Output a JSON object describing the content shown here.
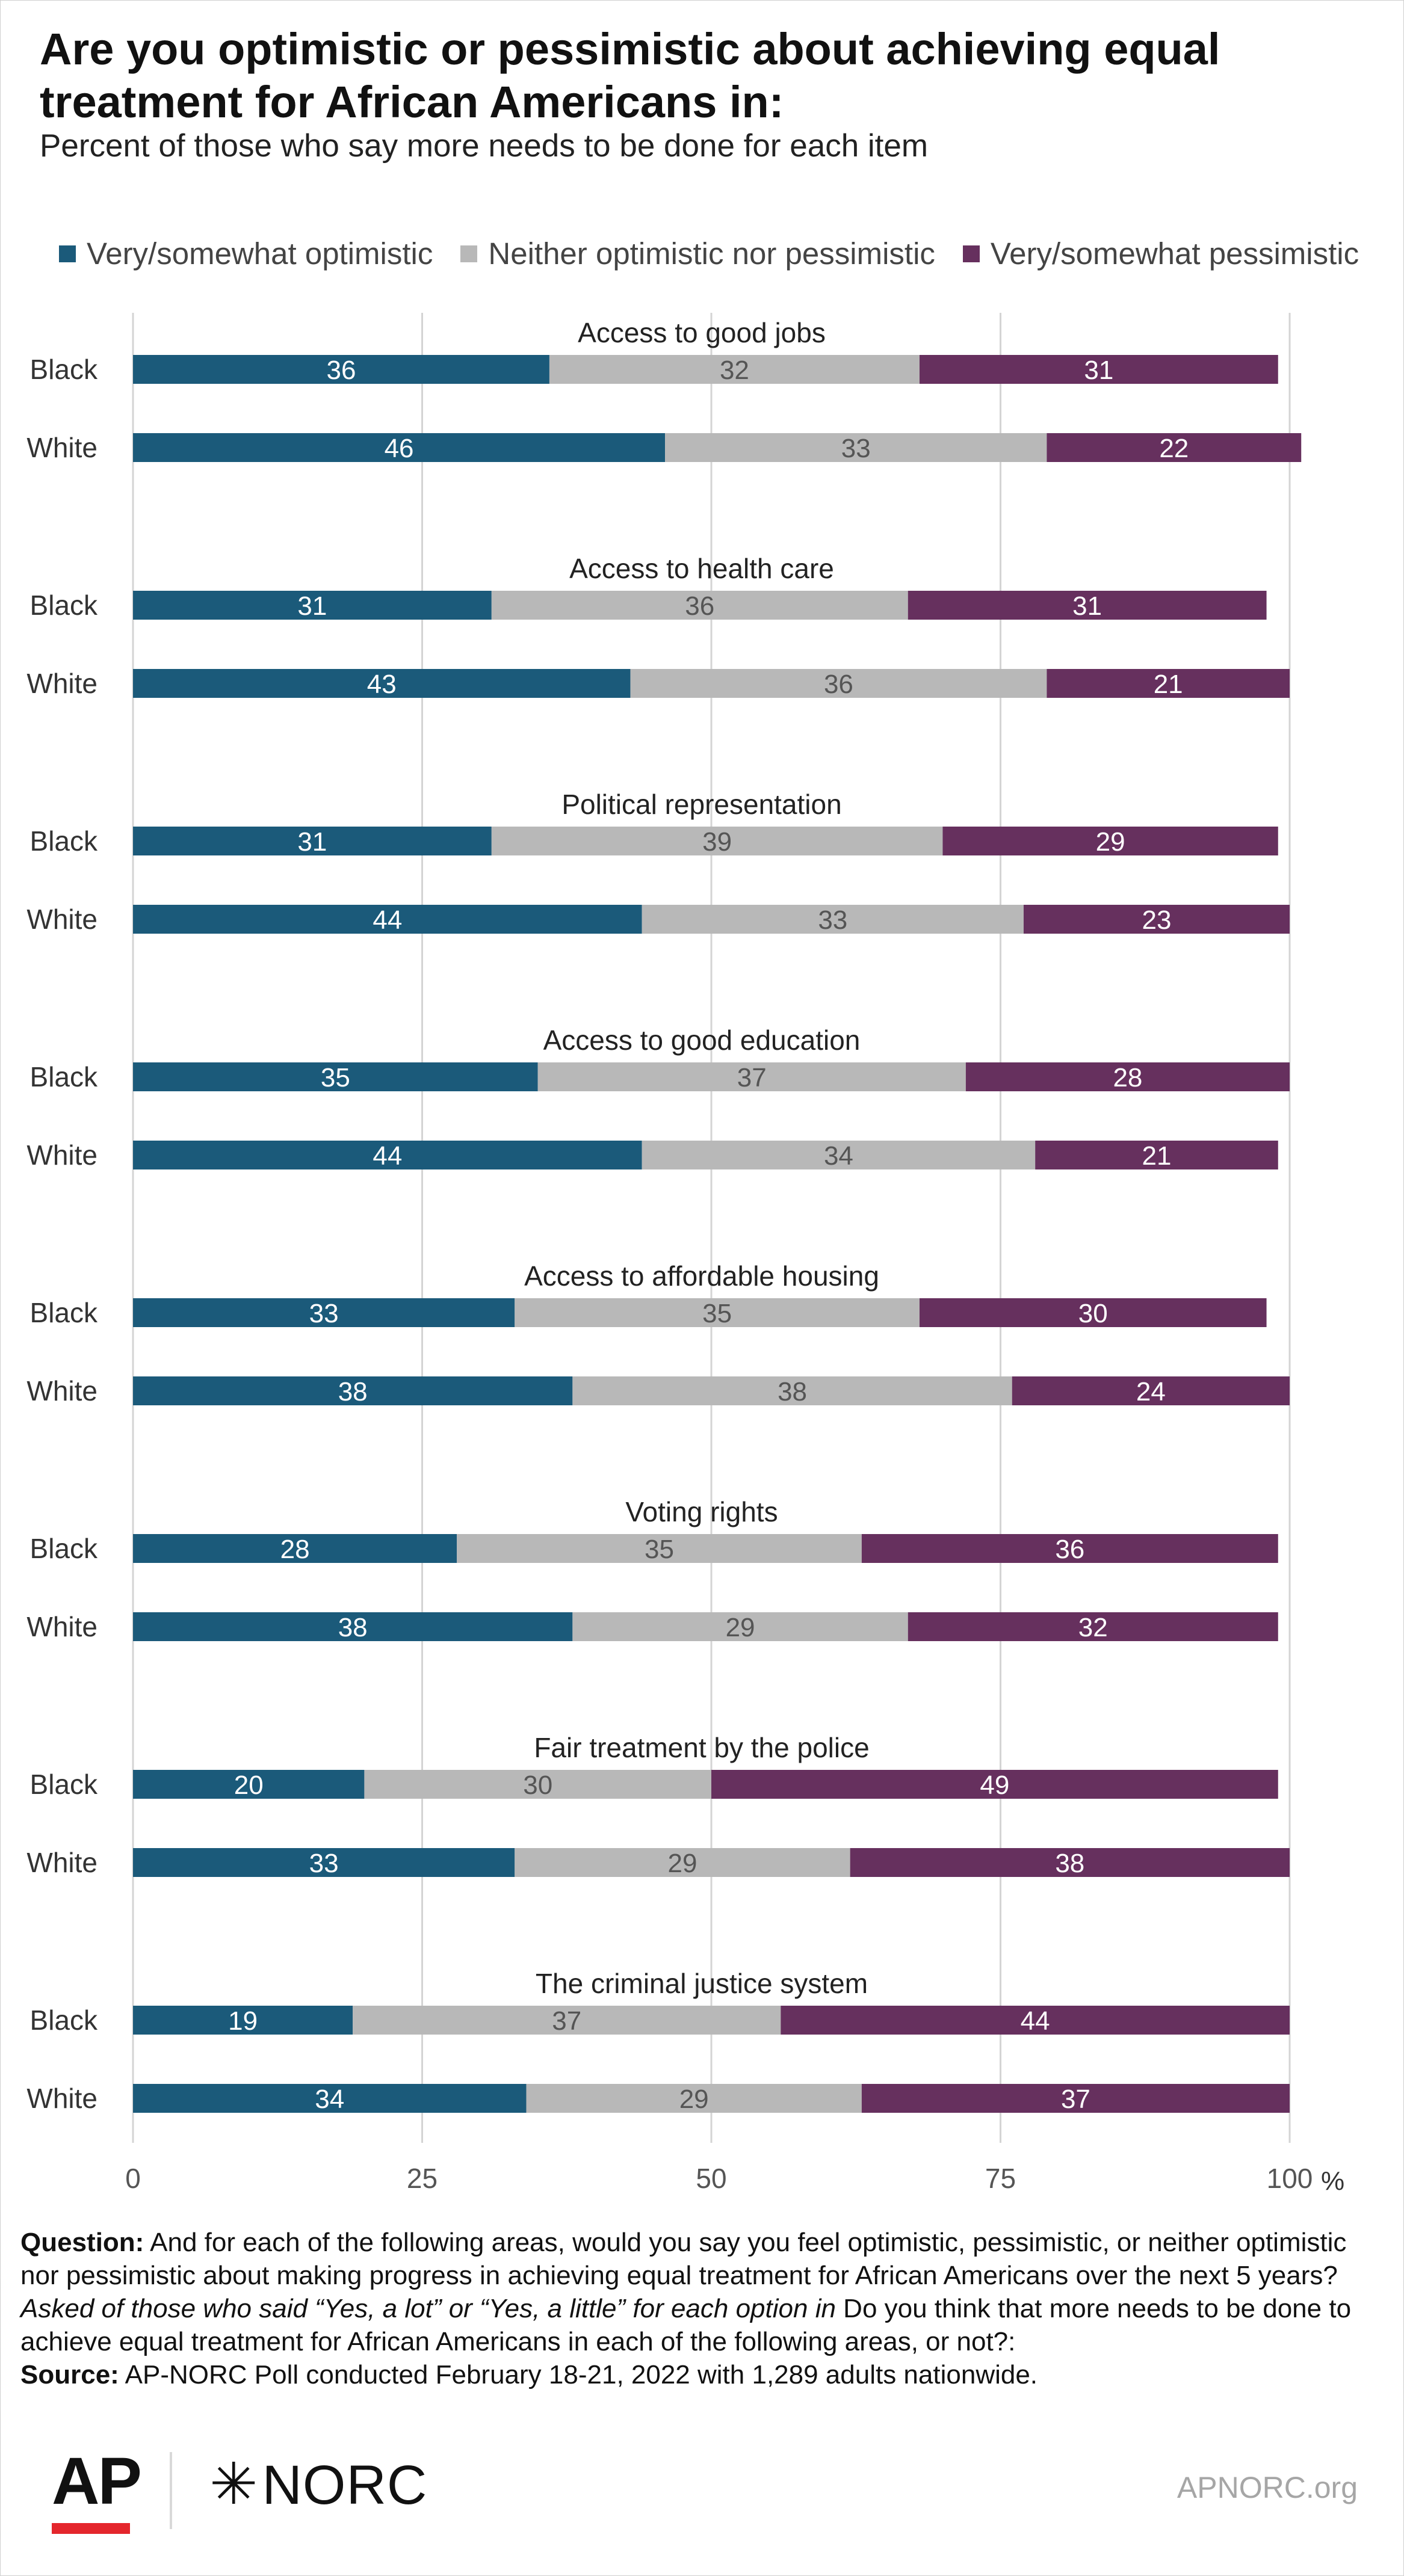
{
  "title": "Are you optimistic or pessimistic about achieving equal treatment for African Americans in:",
  "subtitle": "Percent of those who say more needs to be done for each item",
  "colors": {
    "optimistic": "#1b5a7a",
    "neither": "#b8b8b8",
    "pessimistic": "#66305e"
  },
  "legend": [
    {
      "label": "Very/somewhat optimistic",
      "color": "#1b5a7a"
    },
    {
      "label": "Neither optimistic nor pessimistic",
      "color": "#b8b8b8"
    },
    {
      "label": "Very/somewhat pessimistic",
      "color": "#66305e"
    }
  ],
  "chart_data": {
    "type": "bar",
    "orientation": "horizontal",
    "stacked": true,
    "xlim": [
      0,
      100
    ],
    "x_ticks": [
      "0",
      "25",
      "50",
      "75",
      "100"
    ],
    "x_unit": "%",
    "grid": true,
    "legend_position": "top",
    "series_names": [
      "Very/somewhat optimistic",
      "Neither optimistic nor pessimistic",
      "Very/somewhat pessimistic"
    ],
    "groups": [
      {
        "label": "Access to good jobs",
        "rows": [
          {
            "label": "Black",
            "values": [
              36,
              32,
              31
            ]
          },
          {
            "label": "White",
            "values": [
              46,
              33,
              22
            ]
          }
        ]
      },
      {
        "label": "Access to health care",
        "rows": [
          {
            "label": "Black",
            "values": [
              31,
              36,
              31
            ]
          },
          {
            "label": "White",
            "values": [
              43,
              36,
              21
            ]
          }
        ]
      },
      {
        "label": "Political representation",
        "rows": [
          {
            "label": "Black",
            "values": [
              31,
              39,
              29
            ]
          },
          {
            "label": "White",
            "values": [
              44,
              33,
              23
            ]
          }
        ]
      },
      {
        "label": "Access to good education",
        "rows": [
          {
            "label": "Black",
            "values": [
              35,
              37,
              28
            ]
          },
          {
            "label": "White",
            "values": [
              44,
              34,
              21
            ]
          }
        ]
      },
      {
        "label": "Access to affordable housing",
        "rows": [
          {
            "label": "Black",
            "values": [
              33,
              35,
              30
            ]
          },
          {
            "label": "White",
            "values": [
              38,
              38,
              24
            ]
          }
        ]
      },
      {
        "label": "Voting rights",
        "rows": [
          {
            "label": "Black",
            "values": [
              28,
              35,
              36
            ]
          },
          {
            "label": "White",
            "values": [
              38,
              29,
              32
            ]
          }
        ]
      },
      {
        "label": "Fair treatment by the police",
        "rows": [
          {
            "label": "Black",
            "values": [
              20,
              30,
              49
            ]
          },
          {
            "label": "White",
            "values": [
              33,
              29,
              38
            ]
          }
        ]
      },
      {
        "label": "The criminal justice system",
        "rows": [
          {
            "label": "Black",
            "values": [
              19,
              37,
              44
            ]
          },
          {
            "label": "White",
            "values": [
              34,
              29,
              37
            ]
          }
        ]
      }
    ]
  },
  "notes": {
    "question_label": "Question:",
    "question_text": " And for each of the following areas, would you say you feel optimistic, pessimistic, or neither optimistic nor pessimistic about making progress in achieving equal treatment for African Americans over the next 5 years? ",
    "asked_italic": "Asked of those who said “Yes, a lot” or “Yes, a little” for each option in",
    "asked_rest": " Do you think that more needs to be done to achieve equal treatment for African Americans in each of the following areas, or not?:",
    "source_label": "Source:",
    "source_text": " AP-NORC Poll conducted February 18-21, 2022 with 1,289 adults nationwide."
  },
  "footer": {
    "ap_logo": "AP",
    "norc_logo": "NORC",
    "site": "APNORC.org"
  }
}
